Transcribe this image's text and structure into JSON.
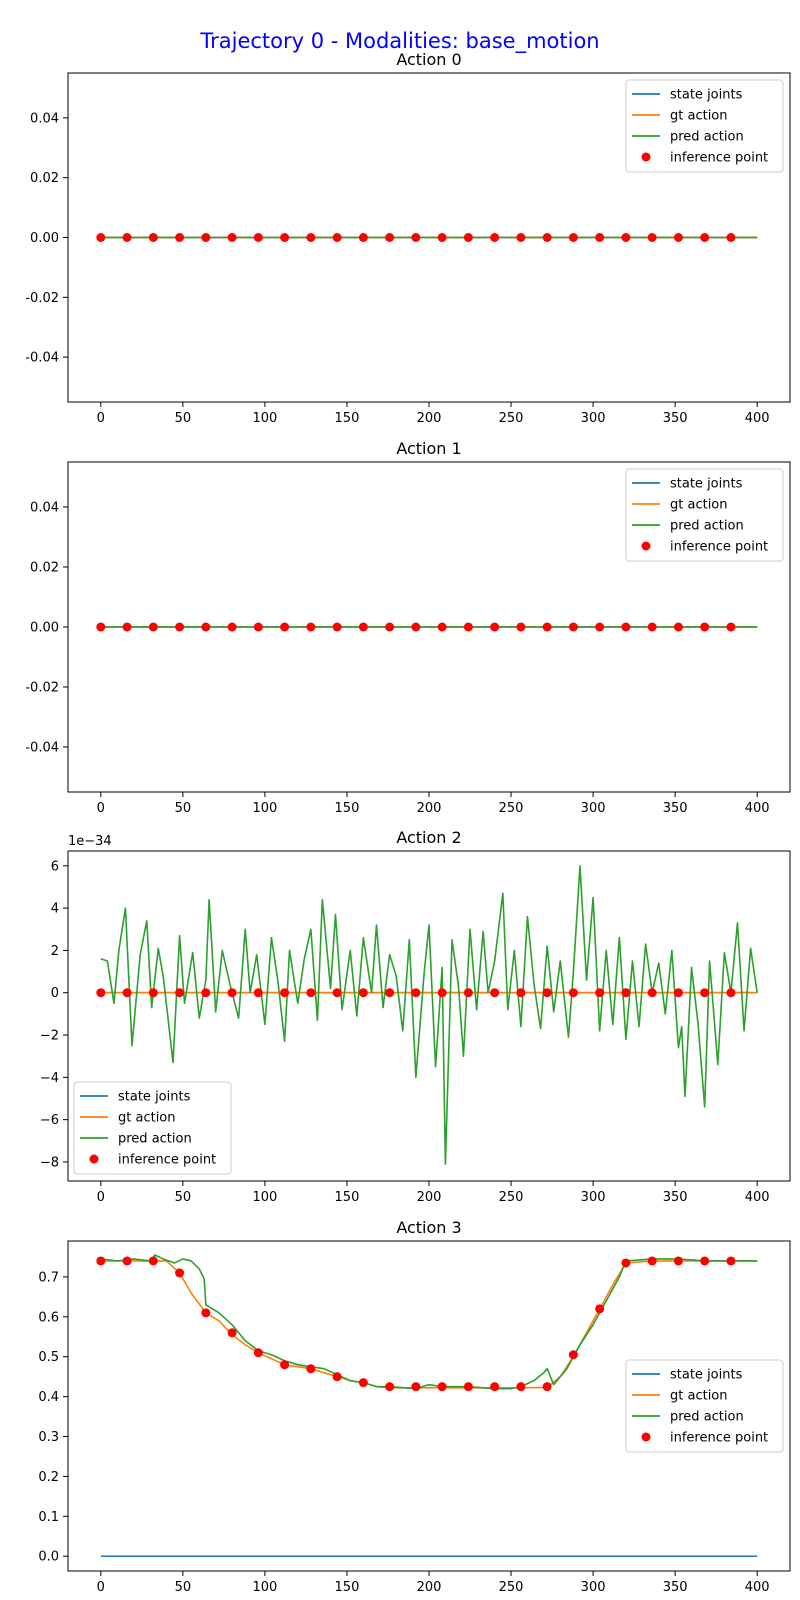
{
  "figure": {
    "title": "Trajectory 0 - Modalities: base_motion",
    "title_color": "#0000ff"
  },
  "colors": {
    "state_joints": "#1f77b4",
    "gt_action": "#ff7f0e",
    "pred_action": "#2ca02c",
    "inference_point": "#ff0000"
  },
  "chart_data": [
    {
      "type": "line",
      "title": "Action 0",
      "xlim": [
        -20,
        420
      ],
      "xticks": [
        0,
        50,
        100,
        150,
        200,
        250,
        300,
        350,
        400
      ],
      "ylim": [
        -0.055,
        0.055
      ],
      "yticks": [
        "-0.04",
        "-0.02",
        "0.00",
        "0.02",
        "0.04"
      ],
      "ytick_values": [
        -0.04,
        -0.02,
        0,
        0.02,
        0.04
      ],
      "offset_label": "",
      "legend_position": "upper right",
      "legend": [
        "state joints",
        "gt action",
        "pred action",
        "inference point"
      ],
      "series": [
        {
          "name": "state joints",
          "x": [
            0,
            400
          ],
          "y": [
            0,
            0
          ]
        },
        {
          "name": "gt action",
          "x": [
            0,
            400
          ],
          "y": [
            0,
            0
          ]
        },
        {
          "name": "pred action",
          "x": [
            0,
            400
          ],
          "y": [
            0,
            0
          ]
        }
      ],
      "inference_points": {
        "name": "inference point",
        "x": [
          0,
          16,
          32,
          48,
          64,
          80,
          96,
          112,
          128,
          144,
          160,
          176,
          192,
          208,
          224,
          240,
          256,
          272,
          288,
          304,
          320,
          336,
          352,
          368,
          384
        ],
        "y": [
          0,
          0,
          0,
          0,
          0,
          0,
          0,
          0,
          0,
          0,
          0,
          0,
          0,
          0,
          0,
          0,
          0,
          0,
          0,
          0,
          0,
          0,
          0,
          0,
          0
        ]
      }
    },
    {
      "type": "line",
      "title": "Action 1",
      "xlim": [
        -20,
        420
      ],
      "xticks": [
        0,
        50,
        100,
        150,
        200,
        250,
        300,
        350,
        400
      ],
      "ylim": [
        -0.055,
        0.055
      ],
      "yticks": [
        "-0.04",
        "-0.02",
        "0.00",
        "0.02",
        "0.04"
      ],
      "ytick_values": [
        -0.04,
        -0.02,
        0,
        0.02,
        0.04
      ],
      "offset_label": "",
      "legend_position": "upper right",
      "legend": [
        "state joints",
        "gt action",
        "pred action",
        "inference point"
      ],
      "series": [
        {
          "name": "state joints",
          "x": [
            0,
            400
          ],
          "y": [
            0,
            0
          ]
        },
        {
          "name": "gt action",
          "x": [
            0,
            400
          ],
          "y": [
            0,
            0
          ]
        },
        {
          "name": "pred action",
          "x": [
            0,
            400
          ],
          "y": [
            0,
            0
          ]
        }
      ],
      "inference_points": {
        "name": "inference point",
        "x": [
          0,
          16,
          32,
          48,
          64,
          80,
          96,
          112,
          128,
          144,
          160,
          176,
          192,
          208,
          224,
          240,
          256,
          272,
          288,
          304,
          320,
          336,
          352,
          368,
          384
        ],
        "y": [
          0,
          0,
          0,
          0,
          0,
          0,
          0,
          0,
          0,
          0,
          0,
          0,
          0,
          0,
          0,
          0,
          0,
          0,
          0,
          0,
          0,
          0,
          0,
          0,
          0
        ]
      }
    },
    {
      "type": "line",
      "title": "Action 2",
      "xlim": [
        -20,
        420
      ],
      "xticks": [
        0,
        50,
        100,
        150,
        200,
        250,
        300,
        350,
        400
      ],
      "ylim": [
        -8.9,
        6.7
      ],
      "yticks": [
        "−8",
        "−6",
        "−4",
        "−2",
        "0",
        "2",
        "4",
        "6"
      ],
      "ytick_values": [
        -8,
        -6,
        -4,
        -2,
        0,
        2,
        4,
        6
      ],
      "offset_label": "1e−34",
      "legend_position": "lower left",
      "legend": [
        "state joints",
        "gt action",
        "pred action",
        "inference point"
      ],
      "series": [
        {
          "name": "state joints",
          "x": [
            0,
            400
          ],
          "y": [
            0,
            0
          ]
        },
        {
          "name": "gt action",
          "x": [
            0,
            400
          ],
          "y": [
            0,
            0
          ]
        },
        {
          "name": "pred action",
          "x": [
            0,
            4,
            8,
            11,
            15,
            19,
            24,
            28,
            31,
            35,
            38,
            44,
            48,
            51,
            56,
            60,
            64,
            66,
            70,
            74,
            79,
            84,
            88,
            91,
            95,
            100,
            104,
            108,
            112,
            115,
            120,
            124,
            128,
            132,
            135,
            140,
            143,
            147,
            152,
            156,
            160,
            165,
            168,
            172,
            176,
            180,
            184,
            188,
            192,
            197,
            200,
            204,
            208,
            210,
            214,
            218,
            221,
            225,
            229,
            233,
            236,
            240,
            245,
            248,
            252,
            256,
            260,
            264,
            268,
            272,
            276,
            280,
            285,
            288,
            292,
            296,
            300,
            304,
            308,
            312,
            316,
            320,
            324,
            328,
            332,
            336,
            340,
            344,
            348,
            352,
            354,
            356,
            360,
            364,
            368,
            371,
            376,
            380,
            384,
            388,
            392,
            396,
            400
          ],
          "y": [
            1.6,
            1.5,
            -0.5,
            2.0,
            4.0,
            -2.5,
            1.8,
            3.4,
            -0.7,
            2.1,
            0.8,
            -3.3,
            2.7,
            -0.5,
            1.9,
            -1.2,
            0.6,
            4.4,
            -0.9,
            2.0,
            0.3,
            -1.2,
            3.0,
            0.0,
            1.8,
            -1.5,
            2.6,
            0.5,
            -2.3,
            2.0,
            -0.5,
            1.6,
            3.0,
            -1.3,
            4.4,
            0.2,
            3.7,
            -0.8,
            2.0,
            -1.1,
            2.6,
            0.0,
            3.2,
            -0.7,
            1.8,
            0.8,
            -1.8,
            2.5,
            -4.0,
            0.9,
            3.2,
            -3.5,
            1.2,
            -8.1,
            2.5,
            0.3,
            -3.0,
            3.0,
            -0.8,
            2.9,
            0.0,
            1.5,
            4.7,
            -0.8,
            2.0,
            -1.6,
            3.6,
            0.4,
            -1.7,
            2.2,
            -0.9,
            1.5,
            -2.1,
            1.0,
            6.0,
            0.6,
            4.5,
            -1.8,
            2.0,
            -1.5,
            2.6,
            -2.2,
            1.5,
            -1.6,
            2.3,
            0.0,
            1.4,
            -1.0,
            2.0,
            -2.6,
            -1.6,
            -4.9,
            1.2,
            -1.5,
            -5.4,
            1.5,
            -3.4,
            1.9,
            0.0,
            3.3,
            -1.8,
            2.1,
            0.0
          ]
        }
      ],
      "inference_points": {
        "name": "inference point",
        "x": [
          0,
          16,
          32,
          48,
          64,
          80,
          96,
          112,
          128,
          144,
          160,
          176,
          192,
          208,
          224,
          240,
          256,
          272,
          288,
          304,
          320,
          336,
          352,
          368,
          384
        ],
        "y": [
          0,
          0,
          0,
          0,
          0,
          0,
          0,
          0,
          0,
          0,
          0,
          0,
          0,
          0,
          0,
          0,
          0,
          0,
          0,
          0,
          0,
          0,
          0,
          0,
          0
        ]
      }
    },
    {
      "type": "line",
      "title": "Action 3",
      "xlim": [
        -20,
        420
      ],
      "xticks": [
        0,
        50,
        100,
        150,
        200,
        250,
        300,
        350,
        400
      ],
      "ylim": [
        -0.037,
        0.79
      ],
      "yticks": [
        "0.0",
        "0.1",
        "0.2",
        "0.3",
        "0.4",
        "0.5",
        "0.6",
        "0.7"
      ],
      "ytick_values": [
        0,
        0.1,
        0.2,
        0.3,
        0.4,
        0.5,
        0.6,
        0.7
      ],
      "offset_label": "",
      "legend_position": "center right",
      "legend": [
        "state joints",
        "gt action",
        "pred action",
        "inference point"
      ],
      "series": [
        {
          "name": "state joints",
          "x": [
            0,
            400
          ],
          "y": [
            0.0,
            0.0
          ]
        },
        {
          "name": "gt action",
          "x": [
            0,
            10,
            20,
            30,
            40,
            48,
            55,
            64,
            72,
            80,
            88,
            96,
            104,
            112,
            120,
            128,
            136,
            144,
            152,
            160,
            168,
            176,
            192,
            208,
            224,
            240,
            256,
            272,
            280,
            288,
            296,
            304,
            312,
            320,
            336,
            352,
            368,
            384,
            400
          ],
          "y": [
            0.74,
            0.74,
            0.74,
            0.74,
            0.74,
            0.71,
            0.66,
            0.61,
            0.59,
            0.555,
            0.53,
            0.51,
            0.495,
            0.48,
            0.475,
            0.47,
            0.46,
            0.45,
            0.44,
            0.435,
            0.425,
            0.422,
            0.422,
            0.422,
            0.422,
            0.422,
            0.422,
            0.423,
            0.45,
            0.5,
            0.56,
            0.62,
            0.68,
            0.735,
            0.74,
            0.74,
            0.74,
            0.74,
            0.74
          ]
        },
        {
          "name": "pred action",
          "x": [
            0,
            10,
            20,
            30,
            33,
            38,
            45,
            50,
            55,
            60,
            63,
            64,
            72,
            80,
            88,
            96,
            104,
            112,
            120,
            128,
            136,
            144,
            152,
            160,
            168,
            176,
            192,
            200,
            208,
            224,
            240,
            250,
            256,
            264,
            270,
            272,
            276,
            284,
            292,
            300,
            308,
            316,
            320,
            336,
            352,
            368,
            384,
            400
          ],
          "y": [
            0.745,
            0.74,
            0.745,
            0.74,
            0.755,
            0.745,
            0.735,
            0.745,
            0.74,
            0.72,
            0.695,
            0.63,
            0.61,
            0.58,
            0.54,
            0.515,
            0.505,
            0.49,
            0.48,
            0.475,
            0.47,
            0.455,
            0.44,
            0.435,
            0.425,
            0.425,
            0.42,
            0.43,
            0.425,
            0.425,
            0.42,
            0.42,
            0.425,
            0.44,
            0.46,
            0.47,
            0.43,
            0.47,
            0.53,
            0.58,
            0.64,
            0.7,
            0.74,
            0.745,
            0.745,
            0.74,
            0.74,
            0.74
          ]
        }
      ],
      "inference_points": {
        "name": "inference point",
        "x": [
          0,
          16,
          32,
          48,
          64,
          80,
          96,
          112,
          128,
          144,
          160,
          176,
          192,
          208,
          224,
          240,
          256,
          272,
          288,
          304,
          320,
          336,
          352,
          368,
          384
        ],
        "y": [
          0.74,
          0.74,
          0.74,
          0.71,
          0.61,
          0.56,
          0.51,
          0.48,
          0.47,
          0.45,
          0.435,
          0.425,
          0.425,
          0.425,
          0.425,
          0.425,
          0.425,
          0.425,
          0.505,
          0.62,
          0.735,
          0.74,
          0.74,
          0.74,
          0.74
        ]
      }
    }
  ]
}
